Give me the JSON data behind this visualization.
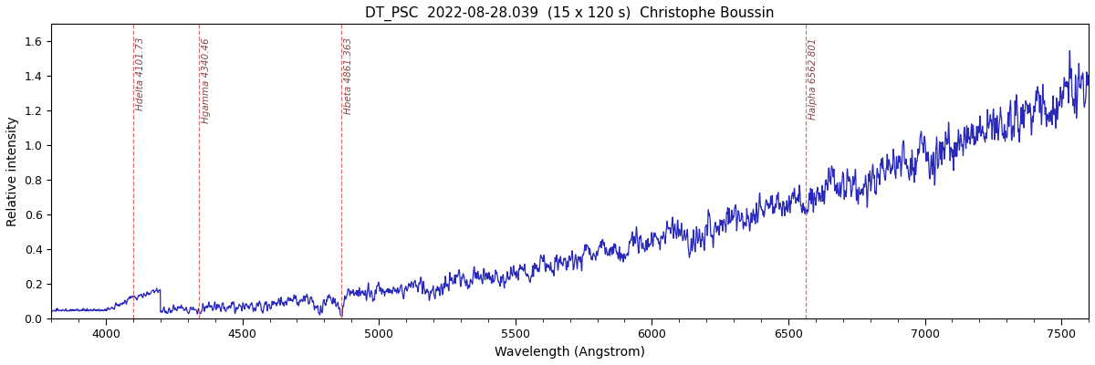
{
  "title": "DT_PSC  2022-08-28.039  (15 x 120 s)  Christophe Boussin",
  "xlabel": "Wavelength (Angstrom)",
  "ylabel": "Relative intensity",
  "xlim": [
    3800,
    7600
  ],
  "ylim": [
    0,
    1.7
  ],
  "line_color": "#2828bb",
  "line_width": 0.9,
  "spectral_lines": [
    {
      "wavelength": 4101.73,
      "label": "Hdelta 4101.73"
    },
    {
      "wavelength": 4340.46,
      "label": "Hgamma 4340.46"
    },
    {
      "wavelength": 4861.363,
      "label": "Hbeta 4861.363"
    },
    {
      "wavelength": 6562.801,
      "label": "Halpha 6562.801"
    }
  ],
  "vline_color": "#e07070",
  "vline_style": "--",
  "label_color": "#884444",
  "label_fontsize": 7.5,
  "title_fontsize": 11,
  "axis_fontsize": 10,
  "tick_fontsize": 9,
  "background_color": "#ffffff",
  "seed": 42
}
